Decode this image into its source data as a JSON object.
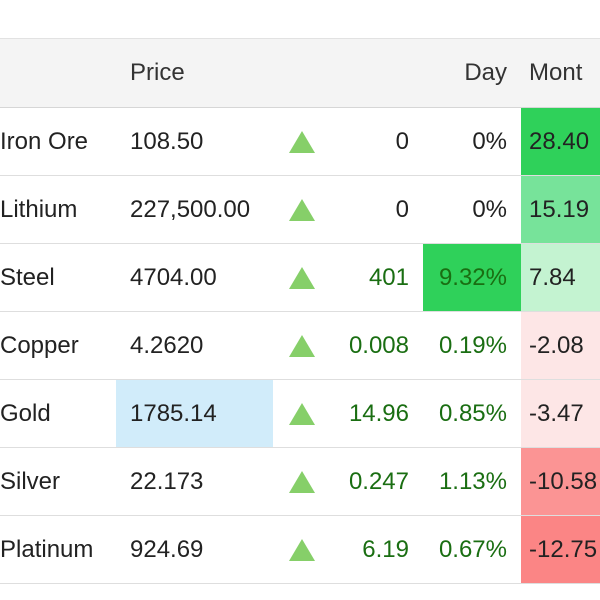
{
  "columns": {
    "price": "Price",
    "day": "Day",
    "month": "Mont"
  },
  "colors": {
    "up_arrow": "#86cf69",
    "green_text": "#1a6e12",
    "strong_green": "#2fd15a",
    "mid_green": "#77e39a",
    "light_green": "#c4f3d1",
    "light_red": "#fde6e6",
    "mid_red": "#fb9494",
    "price_highlight": "#d1ecfa"
  },
  "rows": [
    {
      "name": "Iron Ore",
      "price": "108.50",
      "change": "0",
      "day": "0%",
      "month": "28.40",
      "change_green": false,
      "day_bg": "",
      "month_bg": "#2fd15a",
      "price_bg": "",
      "arrow_icon": "up-triangle-icon"
    },
    {
      "name": "Lithium",
      "price": "227,500.00",
      "change": "0",
      "day": "0%",
      "month": "15.19",
      "change_green": false,
      "day_bg": "",
      "month_bg": "#77e39a",
      "price_bg": "",
      "arrow_icon": "up-triangle-icon"
    },
    {
      "name": "Steel",
      "price": "4704.00",
      "change": "401",
      "day": "9.32%",
      "month": "7.84",
      "change_green": true,
      "day_bg": "#2fd15a",
      "month_bg": "#c4f3d1",
      "price_bg": "",
      "arrow_icon": "up-triangle-icon"
    },
    {
      "name": "Copper",
      "price": "4.2620",
      "change": "0.008",
      "day": "0.19%",
      "month": "-2.08",
      "change_green": true,
      "day_bg": "",
      "month_bg": "#fde6e6",
      "price_bg": "",
      "arrow_icon": "up-triangle-icon"
    },
    {
      "name": "Gold",
      "price": "1785.14",
      "change": "14.96",
      "day": "0.85%",
      "month": "-3.47",
      "change_green": true,
      "day_bg": "",
      "month_bg": "#fde6e6",
      "price_bg": "#d1ecfa",
      "arrow_icon": "up-triangle-icon"
    },
    {
      "name": "Silver",
      "price": "22.173",
      "change": "0.247",
      "day": "1.13%",
      "month": "-10.58",
      "change_green": true,
      "day_bg": "",
      "month_bg": "#fb9494",
      "price_bg": "",
      "arrow_icon": "up-triangle-icon"
    },
    {
      "name": "Platinum",
      "price": "924.69",
      "change": "6.19",
      "day": "0.67%",
      "month": "-12.75",
      "change_green": true,
      "day_bg": "",
      "month_bg": "#fb8585",
      "price_bg": "",
      "arrow_icon": "up-triangle-icon"
    }
  ]
}
